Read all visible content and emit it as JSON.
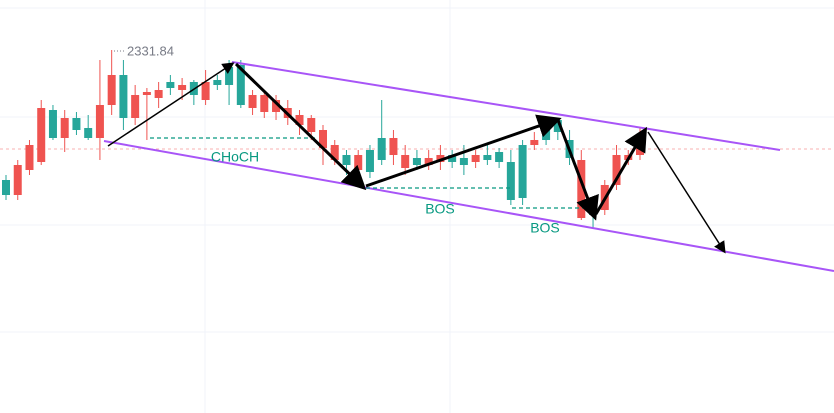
{
  "chart_data": {
    "type": "candlestick",
    "categories": [
      null,
      null,
      null,
      null,
      null,
      null,
      null,
      null,
      null,
      null,
      null,
      null,
      null,
      null,
      null,
      null,
      null,
      null,
      null,
      null,
      null,
      null,
      null,
      null,
      null,
      null,
      null,
      null,
      null,
      null,
      null,
      null,
      null,
      null,
      null,
      null,
      null,
      null,
      null,
      null,
      null,
      null,
      null,
      null,
      null,
      null,
      null,
      null,
      null,
      null,
      null,
      null,
      null,
      null,
      null
    ],
    "open": [
      2317.34,
      2320.34,
      2322.34,
      2326.04,
      2323.04,
      2325.04,
      2323.84,
      2323.04,
      2326.34,
      2329.34,
      2325.04,
      2327.34,
      2327.64,
      2327.84,
      2328.04,
      2328.34,
      2327.34,
      2328.64,
      2328.34,
      2328.34,
      2326.34,
      2327.34,
      2327.34,
      2326.84,
      2326.04,
      2325.34,
      2325.04,
      2323.84,
      2322.34,
      2320.34,
      2321.34,
      2319.64,
      2320.84,
      2323.04,
      2321.34,
      2320.34,
      2321.04,
      2321.34,
      2320.64,
      2320.34,
      2321.34,
      2320.84,
      2320.64,
      2316.84,
      2317.04,
      2322.84,
      2322.84,
      2323.64,
      2321.04,
      2320.84,
      2315.34,
      2318.34,
      2321.34,
      2321.34,
      2322.84
    ],
    "high": [
      2319.34,
      2320.84,
      2322.84,
      2326.84,
      2326.34,
      2325.84,
      2325.64,
      2325.34,
      2330.84,
      2331.84,
      2330.84,
      2328.34,
      2328.04,
      2328.64,
      2329.34,
      2329.04,
      2328.84,
      2329.84,
      2329.34,
      2330.84,
      2330.84,
      2327.84,
      2327.84,
      2327.34,
      2326.84,
      2325.84,
      2325.34,
      2324.34,
      2322.84,
      2321.84,
      2321.84,
      2322.34,
      2326.84,
      2323.84,
      2322.34,
      2321.84,
      2321.84,
      2322.34,
      2321.84,
      2322.34,
      2321.84,
      2322.34,
      2322.04,
      2321.84,
      2322.84,
      2323.64,
      2324.34,
      2325.04,
      2323.84,
      2321.84,
      2316.34,
      2318.84,
      2322.34,
      2321.84,
      2324.04
    ],
    "low": [
      2316.84,
      2316.84,
      2319.34,
      2320.34,
      2322.84,
      2321.64,
      2323.34,
      2322.84,
      2320.84,
      2325.34,
      2323.84,
      2324.34,
      2322.84,
      2326.04,
      2327.34,
      2326.84,
      2326.34,
      2326.34,
      2327.84,
      2326.34,
      2326.04,
      2325.34,
      2325.04,
      2324.84,
      2324.34,
      2323.34,
      2322.84,
      2320.34,
      2320.34,
      2319.34,
      2319.04,
      2319.04,
      2320.34,
      2320.34,
      2319.34,
      2319.84,
      2319.84,
      2319.84,
      2320.04,
      2319.34,
      2320.04,
      2320.34,
      2320.04,
      2316.34,
      2316.34,
      2321.84,
      2322.34,
      2322.84,
      2320.34,
      2314.84,
      2314.04,
      2315.34,
      2317.84,
      2320.34,
      2320.84
    ],
    "close": [
      2318.84,
      2317.34,
      2319.84,
      2320.64,
      2325.84,
      2323.04,
      2325.04,
      2324.04,
      2323.04,
      2326.34,
      2329.34,
      2325.04,
      2327.34,
      2327.04,
      2328.64,
      2327.84,
      2328.64,
      2326.84,
      2328.84,
      2330.14,
      2330.34,
      2326.04,
      2325.64,
      2325.64,
      2325.04,
      2324.34,
      2323.64,
      2322.04,
      2320.84,
      2321.34,
      2319.84,
      2321.84,
      2323.04,
      2321.34,
      2320.04,
      2321.04,
      2320.34,
      2320.64,
      2321.34,
      2321.04,
      2320.64,
      2321.34,
      2321.64,
      2320.64,
      2322.34,
      2322.34,
      2324.04,
      2324.84,
      2322.84,
      2315.04,
      2315.84,
      2315.84,
      2318.34,
      2320.84,
      2321.34
    ],
    "up_color": "#26a69a",
    "down_color": "#ef5350",
    "ylim": [
      2295.54,
      2336.84
    ],
    "high_marker": "2331.84",
    "annotations": [
      "CHoCH",
      "BOS",
      "BOS"
    ]
  }
}
